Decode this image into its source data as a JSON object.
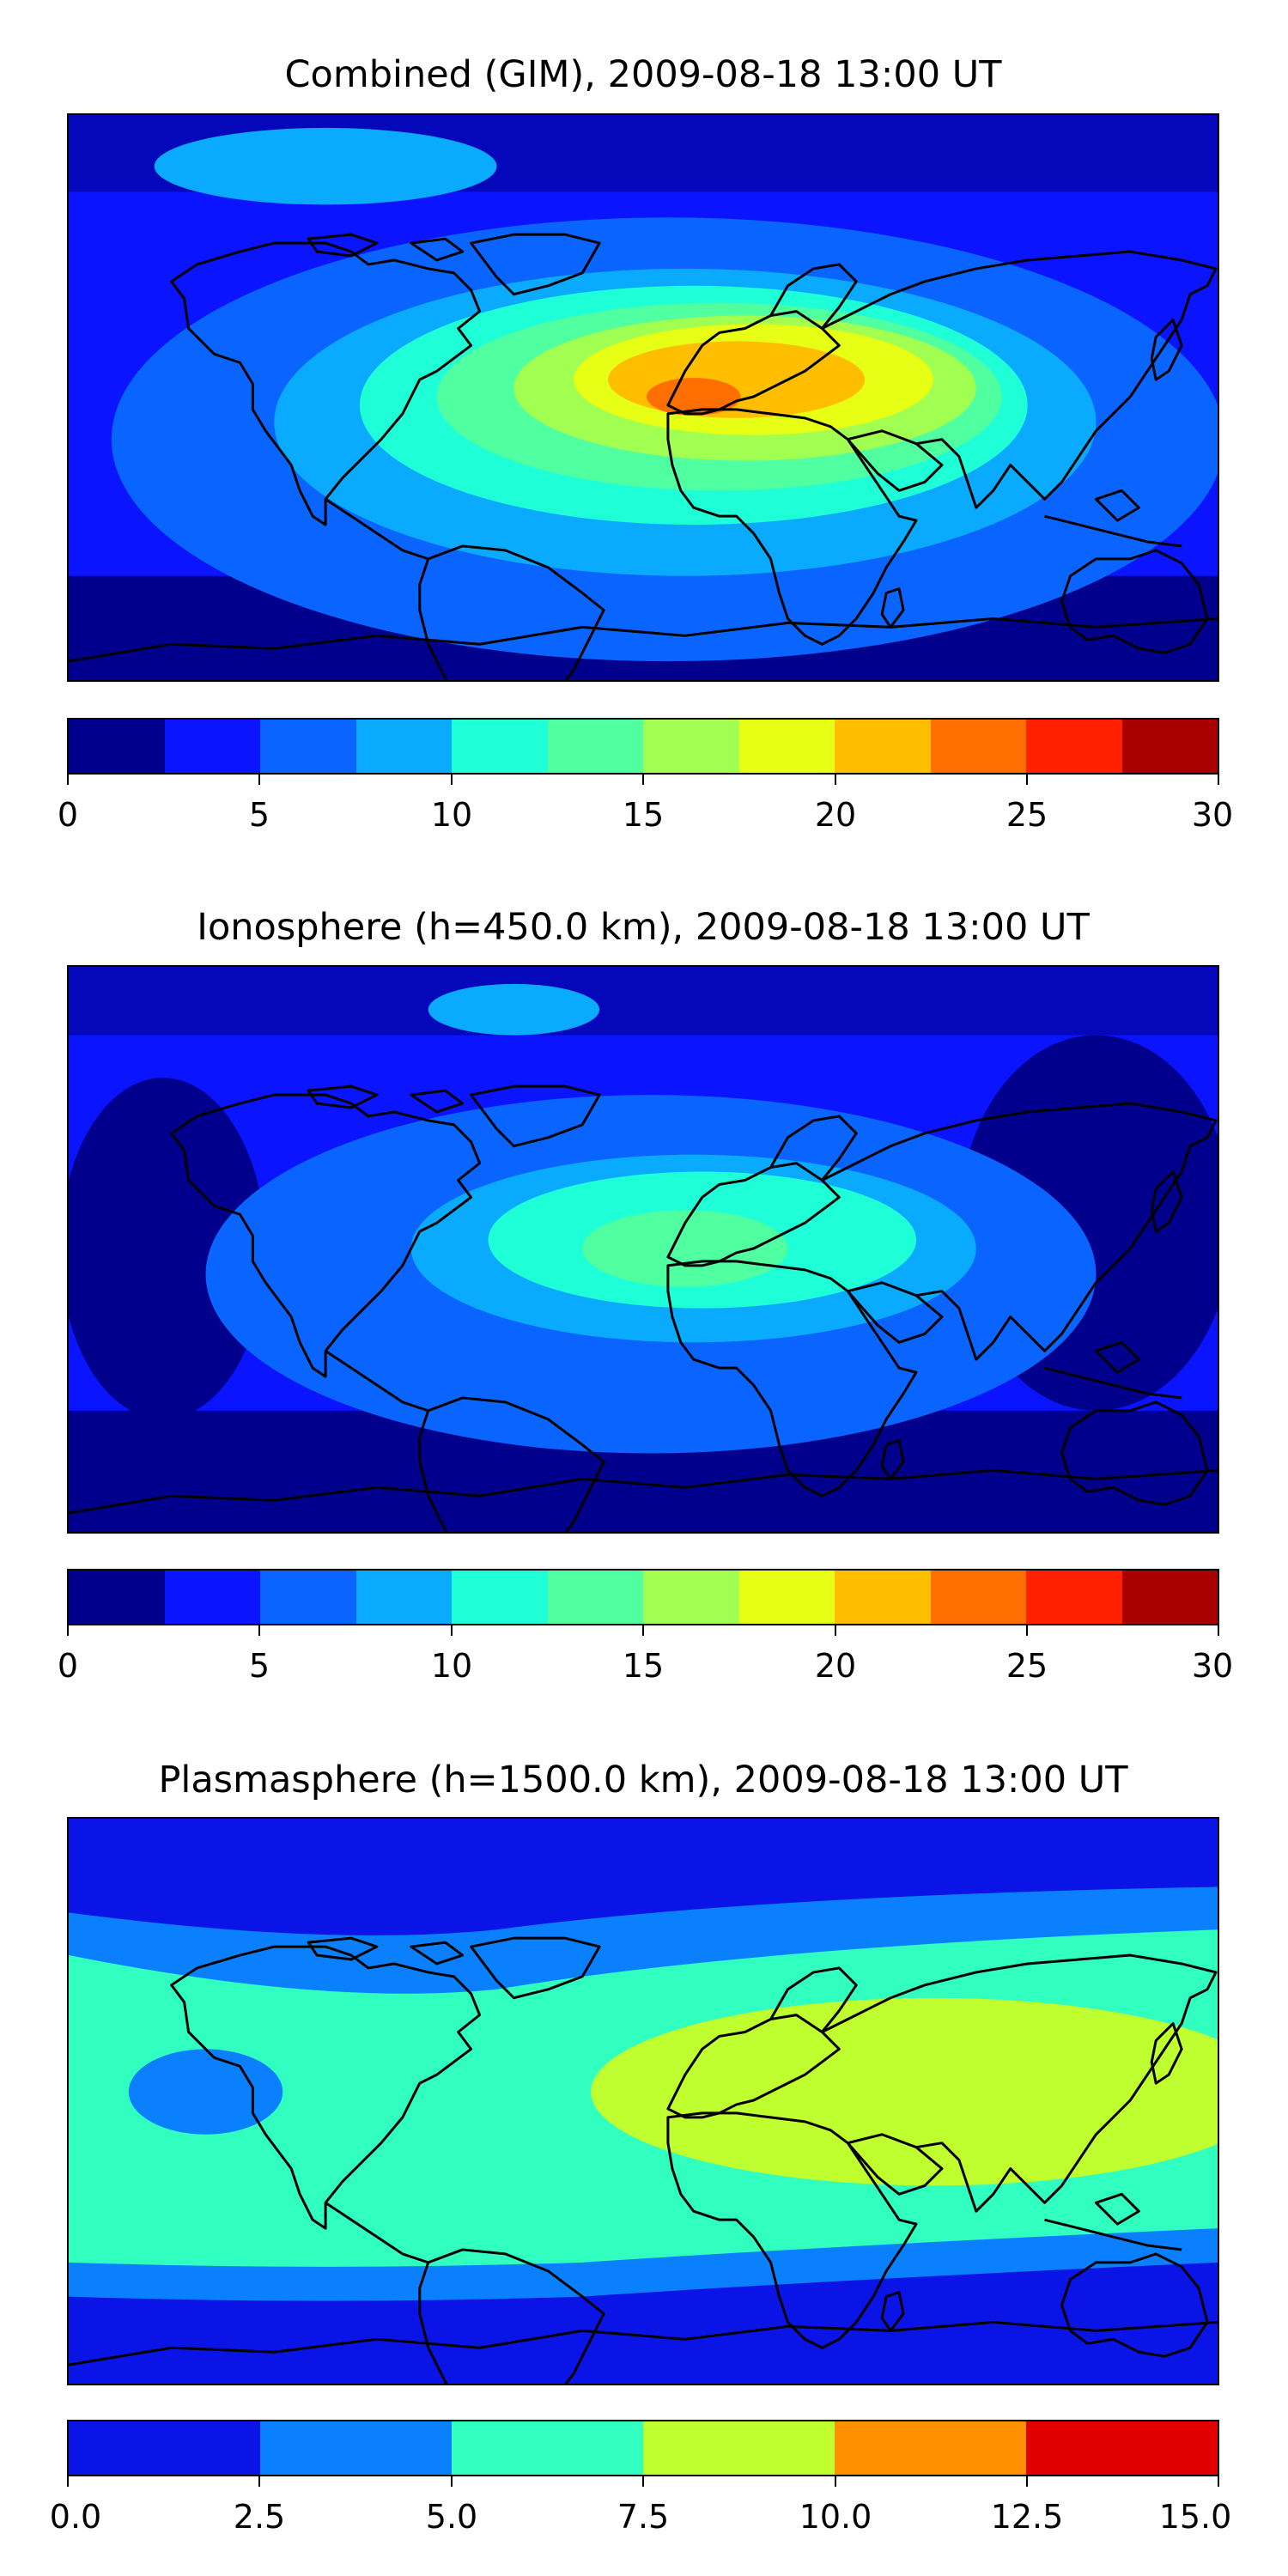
{
  "panels": [
    {
      "title": "Combined (GIM), 2009-08-18 13:00 UT",
      "colorbar": {
        "ticks": [
          "0",
          "5",
          "10",
          "15",
          "20",
          "25",
          "30"
        ],
        "range": [
          0,
          30
        ],
        "levels": [
          0,
          2.5,
          5,
          7.5,
          10,
          12.5,
          15,
          17.5,
          20,
          22.5,
          25,
          27.5,
          30
        ],
        "colors": [
          "#00008c",
          "#0a14ff",
          "#0a64ff",
          "#0aaaff",
          "#1effd8",
          "#50ffa0",
          "#a0ff50",
          "#e6ff14",
          "#ffbe00",
          "#ff6e00",
          "#ff2000",
          "#a80000"
        ]
      }
    },
    {
      "title": "Ionosphere  (h=450.0 km), 2009-08-18 13:00 UT",
      "colorbar": {
        "ticks": [
          "0",
          "5",
          "10",
          "15",
          "20",
          "25",
          "30"
        ],
        "range": [
          0,
          30
        ],
        "levels": [
          0,
          2.5,
          5,
          7.5,
          10,
          12.5,
          15,
          17.5,
          20,
          22.5,
          25,
          27.5,
          30
        ],
        "colors": [
          "#00008c",
          "#0a14ff",
          "#0a64ff",
          "#0aaaff",
          "#1effd8",
          "#50ffa0",
          "#a0ff50",
          "#e6ff14",
          "#ffbe00",
          "#ff6e00",
          "#ff2000",
          "#a80000"
        ]
      }
    },
    {
      "title": "Plasmasphere (h=1500.0 km), 2009-08-18 13:00 UT",
      "colorbar": {
        "ticks": [
          "0.0",
          "2.5",
          "5.0",
          "7.5",
          "10.0",
          "12.5",
          "15.0"
        ],
        "range": [
          0,
          15
        ],
        "levels": [
          0,
          2.5,
          5,
          7.5,
          10,
          12.5,
          15
        ],
        "colors": [
          "#0a14e6",
          "#0a80ff",
          "#30ffc0",
          "#bfff30",
          "#ff9000",
          "#e00000"
        ]
      }
    }
  ]
}
